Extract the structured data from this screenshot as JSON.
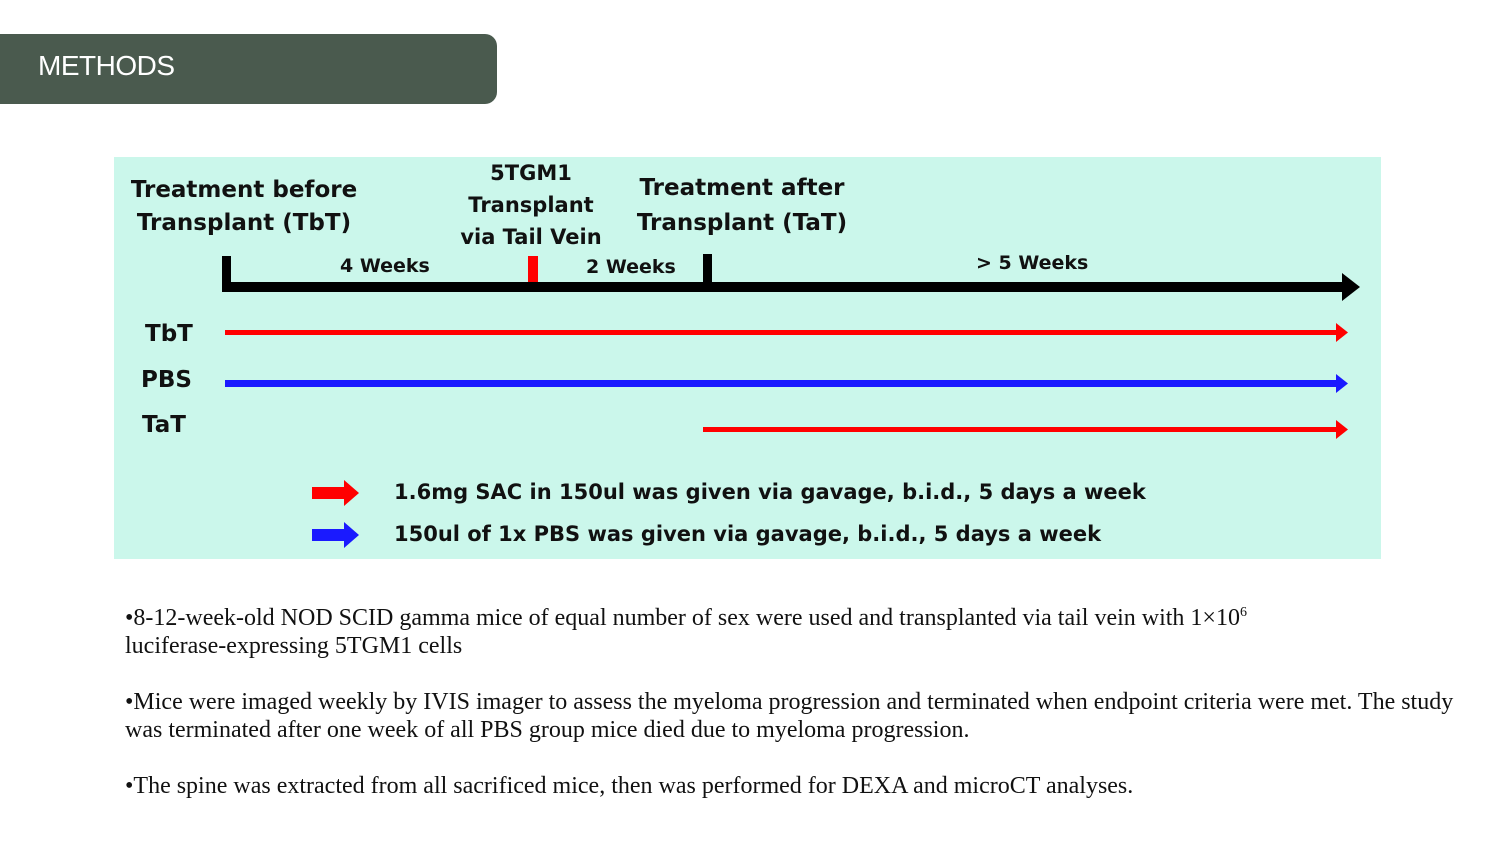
{
  "header": {
    "title": "METHODS"
  },
  "diagram": {
    "phase_labels": {
      "tbt_line1": "Treatment before",
      "tbt_line2": "Transplant (TbT)",
      "transplant_line1": "5TGM1",
      "transplant_line2": "Transplant",
      "transplant_line3": "via Tail Vein",
      "tat_line1": "Treatment after",
      "tat_line2": "Transplant (TaT)"
    },
    "durations": {
      "first": "4 Weeks",
      "second": "2 Weeks",
      "third": "> 5 Weeks"
    },
    "groups": [
      {
        "name": "TbT",
        "color": "#ff0000"
      },
      {
        "name": "PBS",
        "color": "#1a1aff"
      },
      {
        "name": "TaT",
        "color": "#ff0000"
      }
    ],
    "legend": [
      {
        "color": "#ff0000",
        "text": "1.6mg SAC in 150ul was given via gavage, b.i.d., 5 days a week"
      },
      {
        "color": "#1a1aff",
        "text": "150ul of 1x PBS was given via gavage, b.i.d., 5 days a week"
      }
    ],
    "colors": {
      "panel": "#cbf7eb",
      "timeline": "#000000",
      "transplant_marker": "#ff0000"
    }
  },
  "bullets": {
    "b1_main": "•8-12-week-old NOD SCID gamma mice of equal number of sex were used and transplanted via tail vein with 1×10",
    "b1_sup": "6",
    "b1_tail": "luciferase-expressing 5TGM1 cells",
    "b2": "•Mice were imaged weekly by IVIS imager to assess the myeloma progression and terminated when endpoint criteria were met. The study was terminated after one week of all PBS group mice died due to myeloma progression.",
    "b3": "•The spine was extracted from all sacrificed mice, then was performed for DEXA and microCT analyses."
  }
}
